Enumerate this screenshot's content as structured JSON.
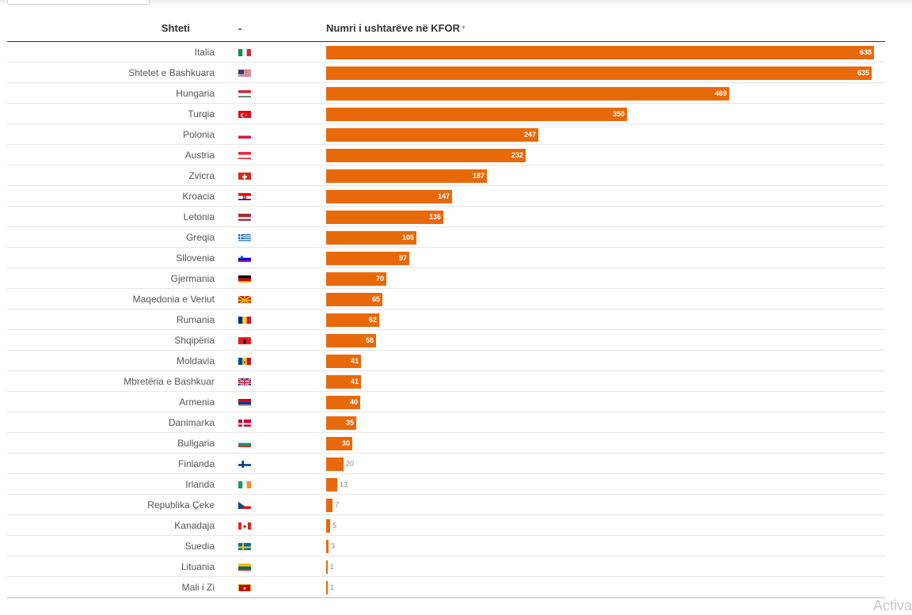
{
  "header": {
    "country_label": "Shteti",
    "flag_label": "-",
    "value_label": "Numri i ushtarëve në KFOR",
    "sort_icon": "sort-desc-icon"
  },
  "watermark": "Activa",
  "colors": {
    "bar": "#e8690a",
    "bar_label_inside": "#ffffff",
    "bar_label_outside": "#888888"
  },
  "chart_data": {
    "type": "bar",
    "orientation": "horizontal",
    "title": "",
    "xlabel": "Numri i ushtarëve në KFOR",
    "ylabel": "Shteti",
    "xlim": [
      0,
      638
    ],
    "categories": [
      "Italia",
      "Shtetet e Bashkuara",
      "Hungaria",
      "Turqia",
      "Polonia",
      "Austria",
      "Zvicra",
      "Kroacia",
      "Letonia",
      "Greqia",
      "Sllovenia",
      "Gjermania",
      "Maqedonia e Veriut",
      "Rumania",
      "Shqipëria",
      "Moldavia",
      "Mbretëria e Bashkuar",
      "Armenia",
      "Danimarka",
      "Bullgaria",
      "Finlanda",
      "Irlanda",
      "Republika Çeke",
      "Kanadaja",
      "Suedia",
      "Lituania",
      "Mali i Zi"
    ],
    "values": [
      638,
      635,
      469,
      350,
      247,
      232,
      187,
      147,
      136,
      105,
      97,
      70,
      65,
      62,
      58,
      41,
      41,
      40,
      35,
      30,
      20,
      13,
      7,
      5,
      3,
      1,
      1
    ],
    "flags": [
      "it",
      "us",
      "hu",
      "tr",
      "pl",
      "at",
      "ch",
      "hr",
      "lv",
      "gr",
      "si",
      "de",
      "mk",
      "ro",
      "al",
      "md",
      "gb",
      "am",
      "dk",
      "bg",
      "fi",
      "ie",
      "cz",
      "ca",
      "se",
      "lt",
      "me"
    ]
  }
}
